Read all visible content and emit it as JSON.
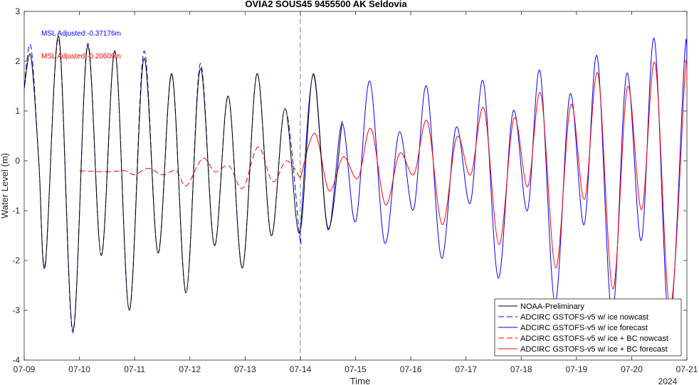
{
  "chart_data": {
    "type": "line",
    "title": "OVIA2 SOUS45 9455500 AK Seldovia",
    "xlabel": "Time",
    "ylabel": "Water Level (m)",
    "year_label": "2024",
    "xlim": [
      "2024-07-09T00:00",
      "2024-07-21T00:00"
    ],
    "ylim": [
      -4,
      3
    ],
    "x_ticks": [
      "07-09",
      "07-10",
      "07-11",
      "07-12",
      "07-13",
      "07-14",
      "07-15",
      "07-16",
      "07-17",
      "07-18",
      "07-19",
      "07-20",
      "07-21"
    ],
    "y_ticks": [
      -4,
      -3,
      -2,
      -1,
      0,
      1,
      2,
      3
    ],
    "grid": false,
    "nowcast_forecast_divider": "2024-07-14T00:00",
    "legend_position": "bottom-right",
    "annotations": [
      {
        "text": "MSL Adjusted:-0.37176m",
        "color": "#0000ff"
      },
      {
        "text": "MSL Adjusted:-0.20609m",
        "color": "#ff0000"
      }
    ],
    "series": [
      {
        "name": "NOAA-Preliminary",
        "color": "#000000",
        "style": "solid",
        "points": [
          [
            "2024-07-09T00:00",
            1.45
          ],
          [
            "2024-07-09T02:55",
            2.1
          ],
          [
            "2024-07-09T06:20",
            0.0
          ],
          [
            "2024-07-09T09:10",
            -2.1
          ],
          [
            "2024-07-09T15:00",
            2.5
          ],
          [
            "2024-07-09T21:10",
            -3.4
          ],
          [
            "2024-07-10T03:30",
            2.3
          ],
          [
            "2024-07-10T09:30",
            -1.9
          ],
          [
            "2024-07-10T15:30",
            2.2
          ],
          [
            "2024-07-10T21:40",
            -3.0
          ],
          [
            "2024-07-11T04:00",
            2.05
          ],
          [
            "2024-07-11T10:10",
            -1.85
          ],
          [
            "2024-07-11T16:10",
            1.75
          ],
          [
            "2024-07-11T22:20",
            -2.65
          ],
          [
            "2024-07-12T04:30",
            1.85
          ],
          [
            "2024-07-12T10:40",
            -1.7
          ],
          [
            "2024-07-12T16:40",
            1.3
          ],
          [
            "2024-07-12T22:50",
            -2.15
          ],
          [
            "2024-07-13T05:10",
            1.75
          ],
          [
            "2024-07-13T11:20",
            -1.5
          ],
          [
            "2024-07-13T17:20",
            1.05
          ],
          [
            "2024-07-13T23:40",
            -1.45
          ],
          [
            "2024-07-14T05:40",
            1.75
          ],
          [
            "2024-07-14T12:00",
            -1.35
          ],
          [
            "2024-07-14T18:10",
            0.8
          ]
        ]
      },
      {
        "name": "ADCIRC GSTOFS-v5 w/ ice nowcast",
        "color": "#0000ff",
        "style": "dashed",
        "points": [
          [
            "2024-07-09T00:00",
            1.5
          ],
          [
            "2024-07-09T02:55",
            2.3
          ],
          [
            "2024-07-09T06:20",
            0.0
          ],
          [
            "2024-07-09T09:10",
            -2.05
          ],
          [
            "2024-07-09T15:00",
            2.45
          ],
          [
            "2024-07-09T21:10",
            -3.45
          ],
          [
            "2024-07-10T03:30",
            2.35
          ],
          [
            "2024-07-10T09:30",
            -1.9
          ],
          [
            "2024-07-10T15:30",
            2.2
          ],
          [
            "2024-07-10T21:40",
            -3.0
          ],
          [
            "2024-07-11T04:00",
            2.2
          ],
          [
            "2024-07-11T10:10",
            -1.85
          ],
          [
            "2024-07-11T16:10",
            1.72
          ],
          [
            "2024-07-11T22:20",
            -2.65
          ],
          [
            "2024-07-12T04:30",
            1.95
          ],
          [
            "2024-07-12T10:40",
            -1.7
          ],
          [
            "2024-07-12T16:40",
            1.3
          ],
          [
            "2024-07-12T22:50",
            -2.15
          ],
          [
            "2024-07-13T05:10",
            1.75
          ],
          [
            "2024-07-13T11:20",
            -1.5
          ],
          [
            "2024-07-13T17:20",
            1.05
          ],
          [
            "2024-07-13T23:40",
            -1.5
          ],
          [
            "2024-07-14T00:00",
            -1.45
          ]
        ]
      },
      {
        "name": "ADCIRC GSTOFS-v5 w/ ice forecast",
        "color": "#0000ff",
        "style": "solid",
        "points": [
          [
            "2024-07-14T00:00",
            -1.45
          ],
          [
            "2024-07-14T05:40",
            1.72
          ],
          [
            "2024-07-14T12:00",
            -1.38
          ],
          [
            "2024-07-14T18:10",
            0.75
          ],
          [
            "2024-07-15T00:00",
            -1.22
          ],
          [
            "2024-07-15T06:10",
            1.6
          ],
          [
            "2024-07-15T12:40",
            -1.65
          ],
          [
            "2024-07-15T19:00",
            0.58
          ],
          [
            "2024-07-16T01:10",
            -0.98
          ],
          [
            "2024-07-16T06:50",
            1.5
          ],
          [
            "2024-07-16T13:20",
            -1.95
          ],
          [
            "2024-07-16T19:40",
            0.67
          ],
          [
            "2024-07-17T01:50",
            -0.85
          ],
          [
            "2024-07-17T07:30",
            1.6
          ],
          [
            "2024-07-17T14:00",
            -2.35
          ],
          [
            "2024-07-17T20:30",
            1.0
          ],
          [
            "2024-07-18T02:40",
            -1.0
          ],
          [
            "2024-07-18T08:10",
            1.8
          ],
          [
            "2024-07-18T14:40",
            -2.85
          ],
          [
            "2024-07-18T21:10",
            1.33
          ],
          [
            "2024-07-19T03:20",
            -1.28
          ],
          [
            "2024-07-19T09:00",
            2.1
          ],
          [
            "2024-07-19T15:30",
            -3.1
          ],
          [
            "2024-07-19T21:50",
            1.75
          ],
          [
            "2024-07-20T04:10",
            -1.6
          ],
          [
            "2024-07-20T09:50",
            2.45
          ],
          [
            "2024-07-20T16:20",
            -3.3
          ],
          [
            "2024-07-20T23:00",
            2.1
          ],
          [
            "2024-07-21T00:00",
            1.9
          ]
        ]
      },
      {
        "name": "ADCIRC GSTOFS-v5 w/ ice + BC nowcast",
        "color": "#ff0000",
        "style": "dashed",
        "points": [
          [
            "2024-07-10T00:00",
            -0.2
          ],
          [
            "2024-07-10T12:00",
            -0.22
          ],
          [
            "2024-07-10T20:00",
            -0.2
          ],
          [
            "2024-07-11T00:00",
            -0.28
          ],
          [
            "2024-07-11T06:00",
            -0.15
          ],
          [
            "2024-07-11T12:00",
            -0.28
          ],
          [
            "2024-07-11T18:00",
            -0.2
          ],
          [
            "2024-07-11T22:30",
            -0.5
          ],
          [
            "2024-07-12T05:30",
            0.05
          ],
          [
            "2024-07-12T11:00",
            -0.22
          ],
          [
            "2024-07-12T17:00",
            -0.1
          ],
          [
            "2024-07-12T23:00",
            -0.55
          ],
          [
            "2024-07-13T05:40",
            0.28
          ],
          [
            "2024-07-13T12:00",
            -0.42
          ],
          [
            "2024-07-13T18:00",
            0.0
          ],
          [
            "2024-07-14T00:00",
            -0.35
          ]
        ]
      },
      {
        "name": "ADCIRC GSTOFS-v5 w/ ice + BC forecast",
        "color": "#ff0000",
        "style": "solid",
        "points": [
          [
            "2024-07-14T00:00",
            -0.35
          ],
          [
            "2024-07-14T06:20",
            0.55
          ],
          [
            "2024-07-14T12:30",
            -0.6
          ],
          [
            "2024-07-14T18:40",
            0.08
          ],
          [
            "2024-07-15T01:00",
            -0.35
          ],
          [
            "2024-07-15T06:40",
            0.65
          ],
          [
            "2024-07-15T13:00",
            -0.88
          ],
          [
            "2024-07-15T19:10",
            0.15
          ],
          [
            "2024-07-16T01:20",
            -0.27
          ],
          [
            "2024-07-16T07:10",
            0.8
          ],
          [
            "2024-07-16T13:40",
            -1.28
          ],
          [
            "2024-07-16T20:00",
            0.48
          ],
          [
            "2024-07-17T02:00",
            -0.28
          ],
          [
            "2024-07-17T07:50",
            1.05
          ],
          [
            "2024-07-17T14:20",
            -1.68
          ],
          [
            "2024-07-17T20:50",
            0.85
          ],
          [
            "2024-07-18T02:50",
            -0.52
          ],
          [
            "2024-07-18T08:30",
            1.35
          ],
          [
            "2024-07-18T15:00",
            -2.15
          ],
          [
            "2024-07-18T21:30",
            1.12
          ],
          [
            "2024-07-19T03:30",
            -0.77
          ],
          [
            "2024-07-19T09:20",
            1.75
          ],
          [
            "2024-07-19T15:50",
            -2.57
          ],
          [
            "2024-07-19T22:10",
            1.48
          ],
          [
            "2024-07-20T04:20",
            -0.98
          ],
          [
            "2024-07-20T10:10",
            1.96
          ],
          [
            "2024-07-20T16:40",
            -2.95
          ],
          [
            "2024-07-20T23:10",
            1.72
          ],
          [
            "2024-07-21T00:00",
            1.6
          ]
        ]
      }
    ]
  }
}
